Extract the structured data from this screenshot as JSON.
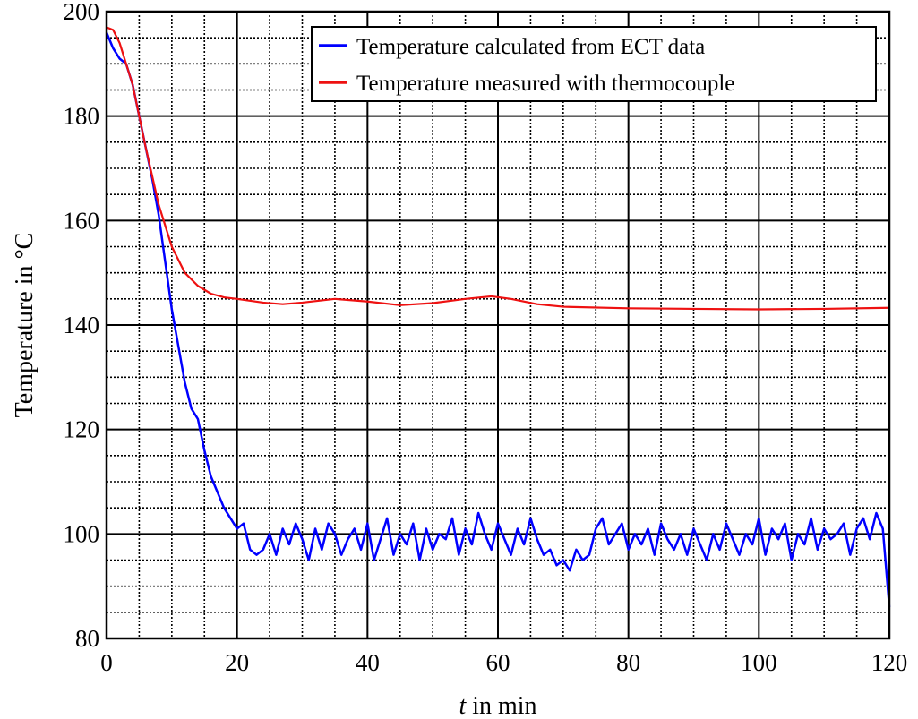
{
  "chart_data": {
    "type": "line",
    "title": "",
    "xlabel_italic": "t",
    "xlabel_rest": " in min",
    "ylabel": "Temperature in °C",
    "xlim": [
      0,
      120
    ],
    "ylim": [
      80,
      200
    ],
    "xticks": [
      0,
      20,
      40,
      60,
      80,
      100,
      120
    ],
    "yticks": [
      80,
      100,
      120,
      140,
      160,
      180,
      200
    ],
    "grid": {
      "major_x": 20,
      "minor_x": 5,
      "major_y": 20,
      "minor_y": 5
    },
    "legend_position": "top-right",
    "series": [
      {
        "name": "Temperature calculated from ECT data",
        "color": "#0000ff",
        "x": [
          0,
          1,
          2,
          3,
          4,
          5,
          6,
          7,
          8,
          9,
          10,
          11,
          12,
          13,
          14,
          15,
          16,
          17,
          18,
          19,
          20,
          21,
          22,
          23,
          24,
          25,
          26,
          27,
          28,
          29,
          30,
          31,
          32,
          33,
          34,
          35,
          36,
          37,
          38,
          39,
          40,
          41,
          42,
          43,
          44,
          45,
          46,
          47,
          48,
          49,
          50,
          51,
          52,
          53,
          54,
          55,
          56,
          57,
          58,
          59,
          60,
          61,
          62,
          63,
          64,
          65,
          66,
          67,
          68,
          69,
          70,
          71,
          72,
          73,
          74,
          75,
          76,
          77,
          78,
          79,
          80,
          81,
          82,
          83,
          84,
          85,
          86,
          87,
          88,
          89,
          90,
          91,
          92,
          93,
          94,
          95,
          96,
          97,
          98,
          99,
          100,
          101,
          102,
          103,
          104,
          105,
          106,
          107,
          108,
          109,
          110,
          111,
          112,
          113,
          114,
          115,
          116,
          117,
          118,
          119,
          120
        ],
        "values": [
          196,
          193,
          191,
          190,
          186,
          180,
          174,
          168,
          161,
          152,
          143,
          136,
          129,
          124,
          122,
          116,
          111,
          108,
          105,
          103,
          101,
          102,
          97,
          96,
          97,
          100,
          96,
          101,
          98,
          102,
          99,
          95,
          101,
          97,
          102,
          100,
          96,
          99,
          101,
          97,
          102,
          95,
          99,
          103,
          96,
          100,
          98,
          102,
          95,
          101,
          97,
          100,
          99,
          103,
          96,
          101,
          98,
          104,
          100,
          97,
          102,
          99,
          96,
          101,
          98,
          103,
          99,
          96,
          97,
          94,
          95,
          93,
          97,
          95,
          96,
          101,
          103,
          98,
          100,
          102,
          97,
          100,
          98,
          101,
          96,
          102,
          99,
          97,
          100,
          96,
          101,
          98,
          95,
          100,
          97,
          102,
          99,
          96,
          100,
          98,
          103,
          96,
          101,
          99,
          102,
          95,
          100,
          98,
          103,
          97,
          101,
          99,
          100,
          102,
          96,
          101,
          103,
          99,
          104,
          101,
          86
        ]
      },
      {
        "name": "Temperature measured with thermocouple",
        "color": "#ee1111",
        "x": [
          0,
          1,
          2,
          4,
          6,
          8,
          10,
          12,
          14,
          16,
          18,
          20,
          24,
          27,
          30,
          35,
          40,
          45,
          50,
          55,
          59,
          62,
          66,
          70,
          80,
          90,
          100,
          110,
          120
        ],
        "values": [
          197,
          196.5,
          194,
          186,
          174,
          163,
          155,
          150,
          147.5,
          146,
          145.3,
          145,
          144.3,
          144,
          144.3,
          145,
          144.5,
          143.8,
          144.2,
          145,
          145.5,
          145,
          144,
          143.5,
          143.2,
          143.1,
          143,
          143.1,
          143.3
        ]
      }
    ]
  }
}
